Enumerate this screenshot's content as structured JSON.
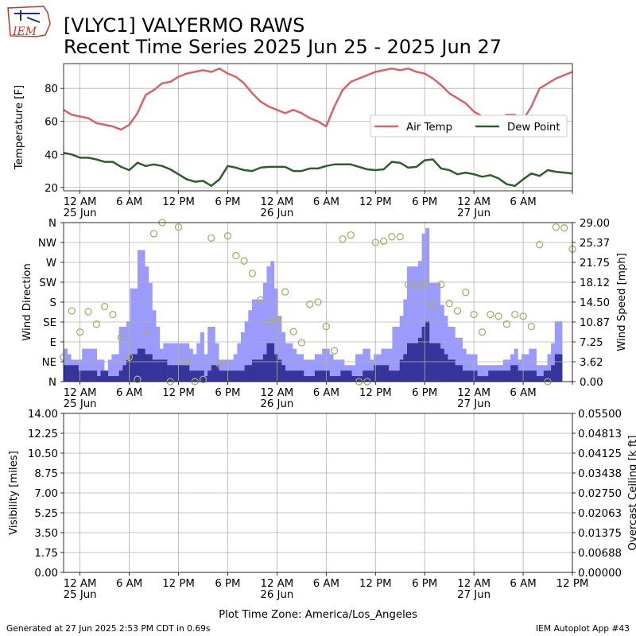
{
  "header": {
    "logo_text": "IEM",
    "title_line1": "[VLYC1] VALYERMO RAWS",
    "title_line2": "Recent Time Series 2025 Jun 25 - 2025 Jun 27"
  },
  "footer": {
    "generated": "Generated at 27 Jun 2025 2:53 PM CDT in 0.69s",
    "app": "IEM Autoplot App #43",
    "timezone_label": "Plot Time Zone: America/Los_Angeles"
  },
  "colors": {
    "air_temp": "#d9626a",
    "dew_point": "#2d5e2d",
    "wind_speed": "#9a9aff",
    "wind_gust_light": "#9a9aff",
    "wind_speed_dark": "#35359c",
    "wind_direction": "#a8ad6a",
    "ceiling_axis": "#008000"
  },
  "x_axis": {
    "range_hours": [
      -2,
      60
    ],
    "ticks": [
      {
        "h": 0,
        "label": "12 AM",
        "date": "25 Jun"
      },
      {
        "h": 6,
        "label": "6 AM",
        "date": ""
      },
      {
        "h": 12,
        "label": "12 PM",
        "date": ""
      },
      {
        "h": 18,
        "label": "6 PM",
        "date": ""
      },
      {
        "h": 24,
        "label": "12 AM",
        "date": "26 Jun"
      },
      {
        "h": 30,
        "label": "6 AM",
        "date": ""
      },
      {
        "h": 36,
        "label": "12 PM",
        "date": ""
      },
      {
        "h": 42,
        "label": "6 PM",
        "date": ""
      },
      {
        "h": 48,
        "label": "12 AM",
        "date": "27 Jun"
      },
      {
        "h": 54,
        "label": "6 AM",
        "date": ""
      },
      {
        "h": 60,
        "label": "12 PM",
        "date": ""
      }
    ]
  },
  "chart_data": [
    {
      "type": "line",
      "ylabel": "Temperature [F]",
      "ylim": [
        18,
        95
      ],
      "yticks": [
        20,
        40,
        60,
        80
      ],
      "grid": true,
      "legend": {
        "placement": "right",
        "entries": [
          "Air Temp",
          "Dew Point"
        ]
      },
      "series": [
        {
          "name": "Air Temp",
          "x": [
            -2,
            -1,
            0,
            1,
            2,
            3,
            4,
            5,
            6,
            7,
            8,
            9,
            10,
            11,
            12,
            13,
            14,
            15,
            16,
            17,
            18,
            19,
            20,
            21,
            22,
            23,
            24,
            25,
            26,
            27,
            28,
            29,
            30,
            31,
            32,
            33,
            34,
            35,
            36,
            37,
            38,
            39,
            40,
            41,
            42,
            43,
            44,
            45,
            46,
            47,
            48,
            49,
            50,
            51,
            52,
            53,
            54,
            55,
            56,
            57,
            58,
            59,
            60
          ],
          "y": [
            67,
            64,
            63,
            62,
            59,
            58,
            57,
            55,
            58,
            65,
            76,
            79,
            83,
            84,
            87,
            89,
            90,
            91,
            90,
            92,
            89,
            87,
            83,
            77,
            72,
            69,
            67,
            65,
            67,
            65,
            62,
            60,
            57,
            69,
            79,
            84,
            86,
            88,
            90,
            91,
            92,
            91,
            92,
            90,
            89,
            86,
            82,
            77,
            74,
            71,
            66,
            63,
            62,
            62,
            64,
            64,
            61,
            69,
            80,
            83,
            86,
            88,
            90
          ]
        },
        {
          "name": "Dew Point",
          "x": [
            -2,
            -1,
            0,
            1,
            2,
            3,
            4,
            5,
            6,
            7,
            8,
            9,
            10,
            11,
            12,
            13,
            14,
            15,
            16,
            17,
            18,
            19,
            20,
            21,
            22,
            23,
            24,
            25,
            26,
            27,
            28,
            29,
            30,
            31,
            32,
            33,
            34,
            35,
            36,
            37,
            38,
            39,
            40,
            41,
            42,
            43,
            44,
            45,
            46,
            47,
            48,
            49,
            50,
            51,
            52,
            53,
            54,
            55,
            56,
            57,
            58,
            59,
            60
          ],
          "y": [
            41,
            40,
            38,
            38,
            37,
            35.5,
            35.5,
            32.5,
            30.5,
            35,
            33,
            34,
            33,
            31,
            28,
            25,
            23.5,
            24,
            21,
            25,
            33,
            32,
            30.5,
            30,
            32,
            32.5,
            32.5,
            32.5,
            30,
            30,
            31.5,
            31.5,
            33,
            34,
            34,
            34,
            32.5,
            31,
            30.5,
            31,
            35.5,
            35,
            32,
            32.5,
            36.5,
            37,
            31.5,
            30.5,
            28,
            29,
            28,
            26.5,
            27.5,
            25.5,
            22,
            21,
            25,
            28.5,
            27,
            30.5,
            29.5,
            29,
            28.5
          ]
        }
      ]
    },
    {
      "type": "bar",
      "ylabel": "Wind Direction",
      "ylabel_right": "Wind Speed [mph]",
      "ylim": [
        0,
        360
      ],
      "ylim_right": [
        0,
        29
      ],
      "yticks_left": [
        {
          "v": 0,
          "label": "N"
        },
        {
          "v": 45,
          "label": "NE"
        },
        {
          "v": 90,
          "label": "E"
        },
        {
          "v": 135,
          "label": "SE"
        },
        {
          "v": 180,
          "label": "S"
        },
        {
          "v": 225,
          "label": "SW"
        },
        {
          "v": 270,
          "label": "W"
        },
        {
          "v": 315,
          "label": "NW"
        },
        {
          "v": 360,
          "label": "N"
        }
      ],
      "yticks_right": [
        "0.00",
        "3.62",
        "7.25",
        "10.87",
        "14.50",
        "18.12",
        "21.75",
        "25.37",
        "29.00"
      ],
      "grid": true,
      "bar_start_hour": -2,
      "bar_width_hours": 1,
      "series": [
        {
          "name": "Wind Gust",
          "values": [
            6,
            5,
            4,
            4,
            4,
            6,
            6,
            6,
            6,
            4,
            4,
            2,
            4,
            5,
            5,
            10,
            10,
            11,
            17,
            17,
            24,
            24,
            21,
            18,
            13,
            10,
            6,
            7,
            7,
            7,
            7,
            7,
            7,
            7,
            6,
            5,
            7,
            9,
            5,
            10,
            10,
            7,
            4,
            4,
            4,
            4,
            5,
            7,
            9,
            11,
            13,
            15,
            15,
            15,
            18,
            21,
            22,
            17,
            12,
            9,
            7,
            7,
            6,
            5,
            5,
            4,
            4,
            4,
            5,
            5,
            6,
            6,
            5,
            4,
            4,
            4,
            3,
            3,
            3,
            5,
            5,
            6,
            6,
            4,
            5,
            5,
            6,
            6,
            6,
            10,
            10,
            12,
            15,
            21,
            21,
            21,
            22,
            27,
            28,
            18,
            18,
            18,
            14,
            12,
            10,
            10,
            8,
            8,
            6,
            5,
            5,
            5,
            3,
            3,
            3,
            3,
            3,
            3,
            3,
            4,
            4,
            5,
            6,
            4,
            5,
            5,
            6,
            6,
            3,
            3,
            3,
            5,
            7,
            11,
            11
          ]
        },
        {
          "name": "Wind Speed",
          "values": [
            3,
            3,
            3,
            3,
            2,
            2,
            2,
            2,
            2,
            1,
            2,
            2,
            1,
            1,
            1,
            2,
            3,
            4,
            5,
            5,
            6,
            6,
            5,
            5,
            4,
            4,
            4,
            4,
            3,
            3,
            3,
            3,
            3,
            3,
            2,
            2,
            2,
            2,
            1,
            2,
            3,
            3,
            2,
            2,
            2,
            2,
            2,
            2,
            2,
            3,
            3,
            4,
            4,
            4,
            5,
            7,
            7,
            5,
            4,
            3,
            2,
            2,
            2,
            2,
            2,
            1,
            1,
            1,
            2,
            2,
            2,
            2,
            1,
            1,
            1,
            2,
            2,
            2,
            1,
            1,
            1,
            2,
            2,
            2,
            3,
            3,
            3,
            3,
            2,
            2,
            2,
            4,
            5,
            7,
            7,
            7,
            8,
            10,
            11,
            7,
            7,
            7,
            6,
            5,
            4,
            4,
            3,
            3,
            2,
            2,
            2,
            2,
            1,
            1,
            1,
            2,
            2,
            2,
            2,
            2,
            2,
            3,
            3,
            2,
            2,
            2,
            2,
            2,
            1,
            1,
            2,
            2,
            3,
            5,
            5
          ]
        }
      ],
      "direction_points": {
        "name": "Wind Direction",
        "x": [
          -2,
          -1,
          0,
          1,
          2,
          3,
          4,
          5,
          6,
          7,
          8,
          9,
          10,
          11,
          12,
          13,
          14,
          15,
          16,
          17,
          18,
          19,
          20,
          21,
          22,
          23,
          24,
          25,
          26,
          27,
          28,
          29,
          30,
          31,
          32,
          33,
          34,
          35,
          36,
          37,
          38,
          39,
          40,
          41,
          42,
          43,
          44,
          45,
          46,
          47,
          48,
          49,
          50,
          51,
          52,
          53,
          54,
          55,
          56,
          57,
          58,
          59,
          60
        ],
        "y": [
          55,
          160,
          112,
          158,
          130,
          170,
          152,
          100,
          55,
          5,
          112,
          335,
          360,
          0,
          350,
          45,
          0,
          5,
          325,
          40,
          330,
          285,
          273,
          245,
          185,
          133,
          140,
          203,
          113,
          88,
          175,
          180,
          125,
          70,
          323,
          332,
          0,
          0,
          315,
          318,
          328,
          328,
          220,
          218,
          220,
          172,
          220,
          177,
          160,
          202,
          152,
          112,
          152,
          148,
          130,
          152,
          148,
          125,
          310,
          0,
          350,
          348,
          300
        ]
      }
    },
    {
      "type": "line",
      "ylabel": "Visibility [miles]",
      "ylabel_right": "Overcast Ceiling [k ft]",
      "ylim": [
        0,
        14
      ],
      "yticks_left": [
        "0.00",
        "1.75",
        "3.50",
        "5.25",
        "7.00",
        "8.75",
        "10.50",
        "12.25",
        "14.00"
      ],
      "yticks_right": [
        "0.00000",
        "0.00688",
        "0.01375",
        "0.02063",
        "0.02750",
        "0.03438",
        "0.04125",
        "0.04813",
        "0.05500"
      ],
      "grid": true,
      "series": []
    }
  ]
}
